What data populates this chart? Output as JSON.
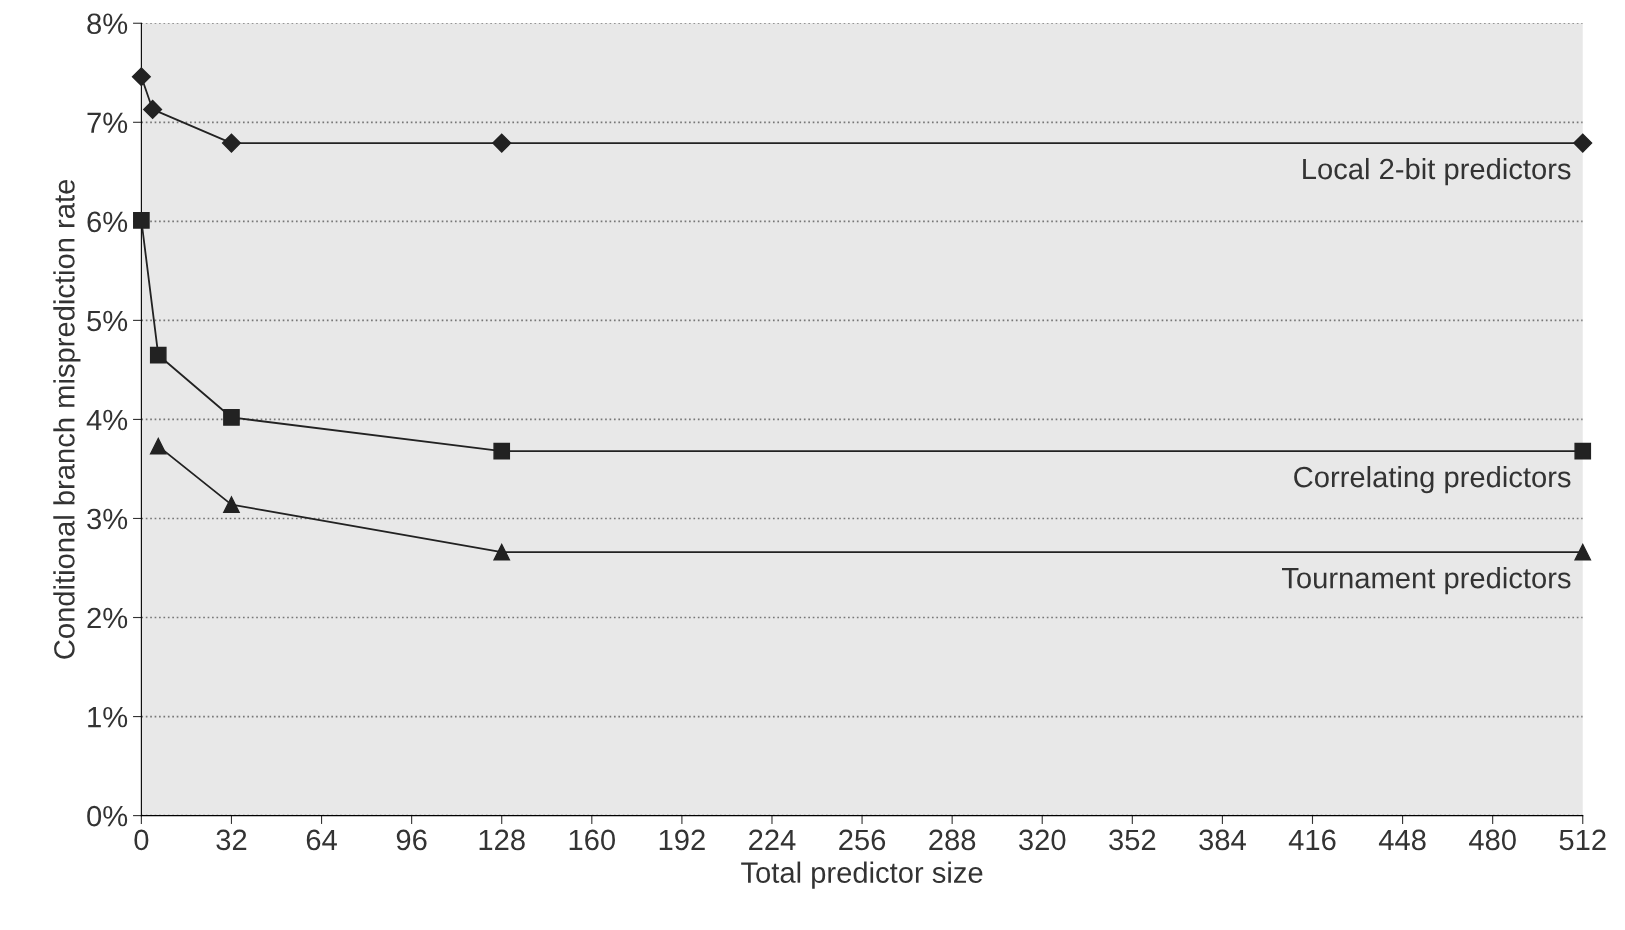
{
  "chart_data": {
    "type": "line",
    "xlabel": "Total predictor size",
    "ylabel": "Conditional branch misprediction rate",
    "xlim": [
      0,
      512
    ],
    "xticks": [
      0,
      32,
      64,
      96,
      128,
      160,
      192,
      224,
      256,
      288,
      320,
      352,
      384,
      416,
      448,
      480,
      512
    ],
    "ylim": [
      0,
      8
    ],
    "yticks": [
      {
        "value": 0,
        "label": "0%"
      },
      {
        "value": 1,
        "label": "1%"
      },
      {
        "value": 2,
        "label": "2%"
      },
      {
        "value": 3,
        "label": "3%"
      },
      {
        "value": 4,
        "label": "4%"
      },
      {
        "value": 5,
        "label": "5%"
      },
      {
        "value": 6,
        "label": "6%"
      },
      {
        "value": 7,
        "label": "7%"
      },
      {
        "value": 8,
        "label": "8%"
      }
    ],
    "grid": "y",
    "legend": false,
    "line_style": "solid",
    "series": [
      {
        "name": "Local 2-bit predictors",
        "color": "#222222",
        "marker": "diamond",
        "x": [
          0,
          4,
          32,
          128,
          512
        ],
        "values": [
          7.46,
          7.13,
          6.79,
          6.79,
          6.79
        ]
      },
      {
        "name": "Correlating predictors",
        "color": "#222222",
        "marker": "square",
        "x": [
          0,
          6,
          32,
          128,
          512
        ],
        "values": [
          6.01,
          4.65,
          4.02,
          3.68,
          3.68
        ]
      },
      {
        "name": "Tournament predictors",
        "color": "#222222",
        "marker": "triangle",
        "x": [
          6,
          32,
          128,
          512
        ],
        "values": [
          3.73,
          3.14,
          2.66,
          2.66
        ]
      }
    ]
  }
}
